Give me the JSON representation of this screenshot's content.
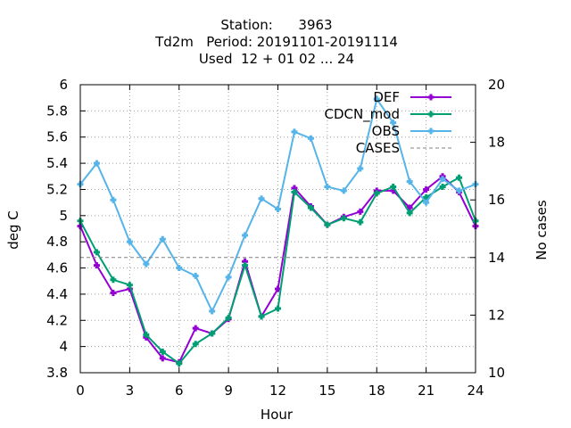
{
  "chart_data": {
    "type": "line",
    "title_lines": [
      "Station:      3963",
      "Td2m   Period: 20191101-20191114",
      "Used  12 + 01 02 ... 24"
    ],
    "xlabel": "Hour",
    "ylabel": "deg C",
    "y2label": "No cases",
    "xlim": [
      0,
      24
    ],
    "ylim": [
      3.8,
      6
    ],
    "y2lim": [
      10,
      20
    ],
    "xticks": [
      0,
      3,
      6,
      9,
      12,
      15,
      18,
      21,
      24
    ],
    "yticks": [
      3.8,
      4,
      4.2,
      4.4,
      4.6,
      4.8,
      5,
      5.2,
      5.4,
      5.6,
      5.8,
      6
    ],
    "yticklabels": [
      "3.8",
      "4",
      "4.2",
      "4.4",
      "4.6",
      "4.8",
      "5",
      "5.2",
      "5.4",
      "5.6",
      "5.8",
      "6"
    ],
    "y2ticks": [
      10,
      12,
      14,
      16,
      18,
      20
    ],
    "grid": true,
    "legend_position": "top-right",
    "x": [
      0,
      1,
      2,
      3,
      4,
      5,
      6,
      7,
      8,
      9,
      10,
      11,
      12,
      13,
      14,
      15,
      16,
      17,
      18,
      19,
      20,
      21,
      22,
      23,
      24
    ],
    "series": [
      {
        "name": "DEF",
        "color": "#9400d3",
        "marker": "plus",
        "values": [
          4.92,
          4.62,
          4.41,
          4.44,
          4.07,
          3.91,
          3.88,
          4.14,
          4.1,
          4.21,
          4.65,
          4.23,
          4.44,
          5.21,
          5.07,
          4.93,
          4.99,
          5.03,
          5.19,
          5.19,
          5.06,
          5.2,
          5.3,
          5.18,
          4.92
        ]
      },
      {
        "name": "CDCN_mod",
        "color": "#009e73",
        "marker": "plus",
        "values": [
          4.96,
          4.72,
          4.51,
          4.47,
          4.09,
          3.96,
          3.87,
          4.02,
          4.1,
          4.22,
          4.62,
          4.23,
          4.29,
          5.18,
          5.06,
          4.93,
          4.98,
          4.95,
          5.17,
          5.22,
          5.02,
          5.14,
          5.22,
          5.29,
          4.96
        ]
      },
      {
        "name": "OBS",
        "color": "#56b4e9",
        "marker": "plus",
        "values": [
          5.24,
          5.4,
          5.12,
          4.8,
          4.63,
          4.82,
          4.6,
          4.54,
          4.27,
          4.53,
          4.85,
          5.13,
          5.05,
          5.64,
          5.59,
          5.22,
          5.19,
          5.36,
          5.89,
          5.71,
          5.26,
          5.1,
          5.28,
          5.19,
          5.24
        ]
      },
      {
        "name": "CASES",
        "color": "#808080",
        "dashed": true,
        "axis": "y2",
        "values": [
          14,
          14,
          14,
          14,
          14,
          14,
          14,
          14,
          14,
          14,
          14,
          14,
          14,
          14,
          14,
          14,
          14,
          14,
          14,
          14,
          14,
          14,
          14,
          14,
          14
        ]
      }
    ]
  }
}
